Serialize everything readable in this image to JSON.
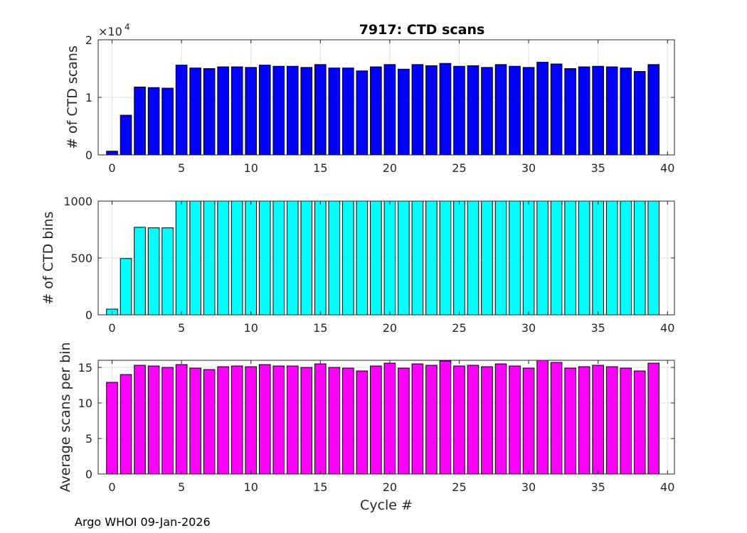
{
  "chart_data": [
    {
      "type": "bar",
      "title": "7917: CTD scans",
      "xlabel": "",
      "ylabel": "# of CTD scans",
      "exponent_label": "×10",
      "exponent_power": "4",
      "xlim": [
        -1,
        40.5
      ],
      "ylim": [
        0,
        20000
      ],
      "xticks": [
        0,
        5,
        10,
        15,
        20,
        25,
        30,
        35,
        40
      ],
      "yticks": [
        0,
        10000,
        20000
      ],
      "ytick_labels": [
        "0",
        "1",
        "2"
      ],
      "bar_color": "#0000ff",
      "grid": true,
      "x": [
        0,
        1,
        2,
        3,
        4,
        5,
        6,
        7,
        8,
        9,
        10,
        11,
        12,
        13,
        14,
        15,
        16,
        17,
        18,
        19,
        20,
        21,
        22,
        23,
        24,
        25,
        26,
        27,
        28,
        29,
        30,
        31,
        32,
        33,
        34,
        35,
        36,
        37,
        38,
        39
      ],
      "values": [
        650,
        6900,
        11800,
        11700,
        11600,
        15600,
        15100,
        15000,
        15300,
        15300,
        15200,
        15600,
        15400,
        15400,
        15200,
        15700,
        15100,
        15100,
        14600,
        15300,
        15700,
        14900,
        15700,
        15500,
        15900,
        15400,
        15500,
        15200,
        15700,
        15400,
        15200,
        16100,
        15800,
        15000,
        15300,
        15400,
        15300,
        15100,
        14500,
        15700
      ]
    },
    {
      "type": "bar",
      "title": "",
      "xlabel": "",
      "ylabel": "# of CTD bins",
      "xlim": [
        -1,
        40.5
      ],
      "ylim": [
        0,
        1000
      ],
      "xticks": [
        0,
        5,
        10,
        15,
        20,
        25,
        30,
        35,
        40
      ],
      "yticks": [
        0,
        500,
        1000
      ],
      "ytick_labels": [
        "0",
        "500",
        "1000"
      ],
      "bar_color": "#00ffff",
      "grid": true,
      "x": [
        0,
        1,
        2,
        3,
        4,
        5,
        6,
        7,
        8,
        9,
        10,
        11,
        12,
        13,
        14,
        15,
        16,
        17,
        18,
        19,
        20,
        21,
        22,
        23,
        24,
        25,
        26,
        27,
        28,
        29,
        30,
        31,
        32,
        33,
        34,
        35,
        36,
        37,
        38,
        39
      ],
      "values": [
        50,
        495,
        770,
        765,
        765,
        1000,
        1000,
        1000,
        1000,
        1000,
        1000,
        1000,
        1000,
        1000,
        1000,
        1000,
        1000,
        1000,
        1000,
        1000,
        1000,
        1000,
        1000,
        1000,
        1000,
        1000,
        1000,
        1000,
        1000,
        1000,
        1000,
        1000,
        1000,
        1000,
        1000,
        1000,
        1000,
        1000,
        1000,
        1000
      ]
    },
    {
      "type": "bar",
      "title": "",
      "xlabel": "Cycle #",
      "ylabel": "Average scans per bin",
      "xlim": [
        -1,
        40.5
      ],
      "ylim": [
        0,
        16
      ],
      "xticks": [
        0,
        5,
        10,
        15,
        20,
        25,
        30,
        35,
        40
      ],
      "yticks": [
        0,
        5,
        10,
        15
      ],
      "ytick_labels": [
        "0",
        "5",
        "10",
        "15"
      ],
      "bar_color": "#ff00ff",
      "grid": true,
      "x": [
        0,
        1,
        2,
        3,
        4,
        5,
        6,
        7,
        8,
        9,
        10,
        11,
        12,
        13,
        14,
        15,
        16,
        17,
        18,
        19,
        20,
        21,
        22,
        23,
        24,
        25,
        26,
        27,
        28,
        29,
        30,
        31,
        32,
        33,
        34,
        35,
        36,
        37,
        38,
        39
      ],
      "values": [
        12.9,
        14.0,
        15.3,
        15.2,
        15.0,
        15.4,
        14.9,
        14.7,
        15.1,
        15.2,
        15.1,
        15.4,
        15.2,
        15.2,
        15.0,
        15.5,
        15.0,
        14.9,
        14.5,
        15.2,
        15.6,
        14.9,
        15.5,
        15.3,
        15.9,
        15.2,
        15.3,
        15.1,
        15.5,
        15.2,
        14.9,
        16.0,
        15.7,
        14.9,
        15.1,
        15.3,
        15.1,
        14.9,
        14.5,
        15.6
      ]
    }
  ],
  "footer": "Argo WHOI 09-Jan-2026"
}
